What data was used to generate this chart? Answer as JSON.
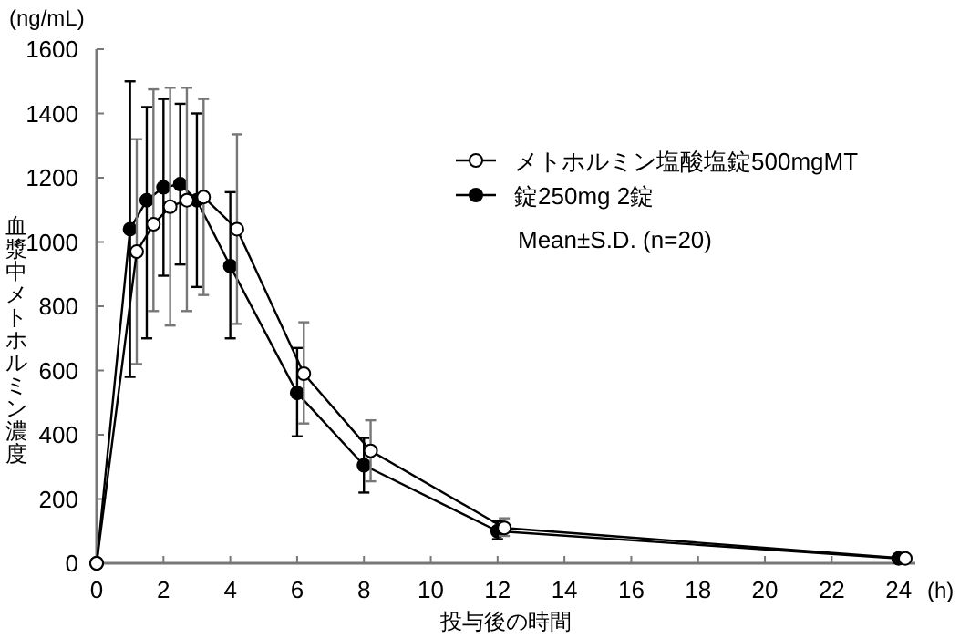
{
  "chart_data": {
    "type": "line",
    "xlabel": "投与後の時間",
    "ylabel": "血漿中メトホルミン濃度",
    "annotations": [
      "(ng/mL)",
      "(h)",
      "Mean±S.D. (n=20)"
    ],
    "xlim": [
      0,
      24.5
    ],
    "xticks": [
      0,
      2,
      4,
      6,
      8,
      10,
      12,
      14,
      16,
      18,
      20,
      22,
      24
    ],
    "ylim": [
      0,
      1600
    ],
    "yticks": [
      0,
      200,
      400,
      600,
      800,
      1000,
      1200,
      1400,
      1600
    ],
    "grid": false,
    "legend": "right",
    "marker": "circle",
    "line_style": "solid",
    "series": [
      {
        "name": "メトホルミン塩酸塩錠500mgMT",
        "color": "#ffffff",
        "x": [
          0,
          1.2,
          1.7,
          2.2,
          2.7,
          3.2,
          4.2,
          6.2,
          8.2,
          12.2,
          24.2
        ],
        "values": [
          0,
          970,
          1055,
          1110,
          1130,
          1140,
          1040,
          590,
          350,
          110,
          15
        ],
        "errors": [
          null,
          [
            620,
            1320
          ],
          [
            785,
            1475
          ],
          [
            740,
            1480
          ],
          [
            785,
            1480
          ],
          [
            835,
            1445
          ],
          [
            745,
            1335
          ],
          [
            435,
            750
          ],
          [
            255,
            445
          ],
          [
            85,
            140
          ],
          null
        ]
      },
      {
        "name": "錠250mg 2錠",
        "color": "#000000",
        "x": [
          0,
          1,
          1.5,
          2,
          2.5,
          3,
          4,
          6,
          8,
          12,
          24
        ],
        "values": [
          0,
          1040,
          1130,
          1170,
          1180,
          1130,
          925,
          530,
          305,
          100,
          15
        ],
        "errors": [
          null,
          [
            580,
            1500
          ],
          [
            700,
            1420
          ],
          [
            895,
            1445
          ],
          [
            930,
            1430
          ],
          [
            860,
            1400
          ],
          [
            700,
            1155
          ],
          [
            395,
            670
          ],
          [
            220,
            390
          ],
          [
            75,
            130
          ],
          null
        ]
      }
    ]
  }
}
